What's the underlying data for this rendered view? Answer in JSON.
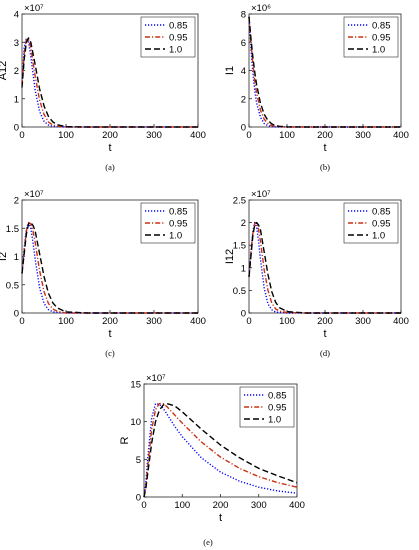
{
  "legend_labels": [
    "0.85",
    "0.95",
    "1.0"
  ],
  "line_colors": [
    "#0000ff",
    "#c83214",
    "#000000"
  ],
  "chart_data": [
    {
      "type": "line",
      "panel": "(a)",
      "ylabel": "A12",
      "xlabel": "t",
      "exponent": "×10⁷",
      "xlim": [
        0,
        400
      ],
      "ylim": [
        0,
        4
      ],
      "xticks": [
        "0",
        "100",
        "200",
        "300",
        "400"
      ],
      "yticks": [
        "0",
        "1",
        "2",
        "3",
        "4"
      ],
      "legend": "top-right",
      "x": [
        0,
        5,
        10,
        15,
        20,
        25,
        30,
        40,
        50,
        60,
        70,
        80,
        100,
        150,
        200,
        300,
        400
      ],
      "series": [
        {
          "name": "0.85",
          "values": [
            1.6,
            2.8,
            3.15,
            3.0,
            2.5,
            1.9,
            1.3,
            0.55,
            0.2,
            0.07,
            0.02,
            0.01,
            0,
            0,
            0,
            0,
            0
          ]
        },
        {
          "name": "0.95",
          "values": [
            1.5,
            2.6,
            3.1,
            3.1,
            2.8,
            2.3,
            1.8,
            0.95,
            0.45,
            0.18,
            0.07,
            0.03,
            0,
            0,
            0,
            0,
            0
          ]
        },
        {
          "name": "1.0",
          "values": [
            1.4,
            2.4,
            3.0,
            3.15,
            3.0,
            2.6,
            2.2,
            1.35,
            0.75,
            0.38,
            0.18,
            0.08,
            0.01,
            0,
            0,
            0,
            0
          ]
        }
      ]
    },
    {
      "type": "line",
      "panel": "(b)",
      "ylabel": "I1",
      "xlabel": "t",
      "exponent": "×10⁶",
      "xlim": [
        0,
        400
      ],
      "ylim": [
        0,
        8
      ],
      "xticks": [
        "0",
        "100",
        "200",
        "300",
        "400"
      ],
      "yticks": [
        "0",
        "2",
        "4",
        "6",
        "8"
      ],
      "legend": "top-right",
      "x": [
        0,
        5,
        10,
        15,
        20,
        30,
        40,
        50,
        60,
        70,
        80,
        100,
        150,
        200,
        300,
        400
      ],
      "series": [
        {
          "name": "0.85",
          "values": [
            7.8,
            5.6,
            3.9,
            2.6,
            1.7,
            0.7,
            0.25,
            0.09,
            0.03,
            0.01,
            0,
            0,
            0,
            0,
            0,
            0
          ]
        },
        {
          "name": "0.95",
          "values": [
            7.8,
            6.0,
            4.5,
            3.3,
            2.4,
            1.2,
            0.55,
            0.24,
            0.1,
            0.04,
            0.02,
            0,
            0,
            0,
            0,
            0
          ]
        },
        {
          "name": "1.0",
          "values": [
            7.8,
            6.3,
            5.0,
            3.9,
            3.0,
            1.7,
            0.9,
            0.45,
            0.22,
            0.1,
            0.05,
            0.01,
            0,
            0,
            0,
            0
          ]
        }
      ]
    },
    {
      "type": "line",
      "panel": "(c)",
      "ylabel": "I2",
      "xlabel": "t",
      "exponent": "×10⁷",
      "xlim": [
        0,
        400
      ],
      "ylim": [
        0,
        2
      ],
      "xticks": [
        "0",
        "100",
        "200",
        "300",
        "400"
      ],
      "yticks": [
        "0",
        "0.5",
        "1",
        "1.5",
        "2"
      ],
      "legend": "top-right",
      "x": [
        0,
        5,
        10,
        15,
        20,
        25,
        30,
        40,
        50,
        60,
        70,
        80,
        100,
        150,
        200,
        300,
        400
      ],
      "series": [
        {
          "name": "0.85",
          "values": [
            0.7,
            1.15,
            1.5,
            1.6,
            1.5,
            1.25,
            0.95,
            0.45,
            0.17,
            0.06,
            0.02,
            0.01,
            0,
            0,
            0,
            0,
            0
          ]
        },
        {
          "name": "0.95",
          "values": [
            0.7,
            1.1,
            1.45,
            1.6,
            1.58,
            1.45,
            1.25,
            0.75,
            0.38,
            0.17,
            0.07,
            0.03,
            0,
            0,
            0,
            0,
            0
          ]
        },
        {
          "name": "1.0",
          "values": [
            0.7,
            1.05,
            1.4,
            1.58,
            1.6,
            1.55,
            1.45,
            1.05,
            0.65,
            0.35,
            0.18,
            0.09,
            0.02,
            0,
            0,
            0,
            0
          ]
        }
      ]
    },
    {
      "type": "line",
      "panel": "(d)",
      "ylabel": "I12",
      "xlabel": "t",
      "exponent": "×10⁷",
      "xlim": [
        0,
        400
      ],
      "ylim": [
        0,
        2.5
      ],
      "xticks": [
        "0",
        "100",
        "200",
        "300",
        "400"
      ],
      "yticks": [
        "0",
        "0.5",
        "1",
        "1.5",
        "2",
        "2.5"
      ],
      "legend": "top-right",
      "x": [
        0,
        5,
        10,
        15,
        20,
        25,
        30,
        40,
        50,
        60,
        70,
        80,
        100,
        150,
        200,
        300,
        400
      ],
      "series": [
        {
          "name": "0.85",
          "values": [
            0.8,
            1.35,
            1.8,
            2.0,
            1.9,
            1.6,
            1.2,
            0.55,
            0.2,
            0.07,
            0.02,
            0.01,
            0,
            0,
            0,
            0,
            0
          ]
        },
        {
          "name": "0.95",
          "values": [
            0.8,
            1.3,
            1.75,
            1.98,
            2.0,
            1.85,
            1.6,
            0.95,
            0.5,
            0.22,
            0.09,
            0.04,
            0.01,
            0,
            0,
            0,
            0
          ]
        },
        {
          "name": "1.0",
          "values": [
            0.8,
            1.25,
            1.7,
            1.95,
            2.0,
            1.95,
            1.85,
            1.35,
            0.85,
            0.47,
            0.24,
            0.12,
            0.03,
            0,
            0,
            0,
            0
          ]
        }
      ]
    },
    {
      "type": "line",
      "panel": "(e)",
      "ylabel": "R",
      "xlabel": "t",
      "exponent": "×10⁷",
      "xlim": [
        0,
        400
      ],
      "ylim": [
        0,
        15
      ],
      "xticks": [
        "0",
        "100",
        "200",
        "300",
        "400"
      ],
      "yticks": [
        "0",
        "5",
        "10",
        "15"
      ],
      "legend": "top-right",
      "x": [
        0,
        5,
        10,
        20,
        30,
        40,
        50,
        60,
        80,
        100,
        150,
        200,
        250,
        300,
        350,
        400
      ],
      "series": [
        {
          "name": "0.85",
          "values": [
            0,
            2.0,
            5.2,
            10.5,
            12.4,
            12.3,
            11.8,
            11.0,
            9.4,
            8.0,
            5.2,
            3.3,
            2.1,
            1.3,
            0.8,
            0.5
          ]
        },
        {
          "name": "0.95",
          "values": [
            0,
            1.6,
            4.2,
            9.0,
            11.6,
            12.4,
            12.4,
            12.0,
            10.9,
            9.8,
            7.3,
            5.3,
            3.8,
            2.7,
            1.9,
            1.3
          ]
        },
        {
          "name": "1.0",
          "values": [
            0,
            1.2,
            3.2,
            7.2,
            10.0,
            11.5,
            12.2,
            12.4,
            12.1,
            11.3,
            9.0,
            6.9,
            5.2,
            3.8,
            2.8,
            1.9
          ]
        }
      ]
    }
  ]
}
